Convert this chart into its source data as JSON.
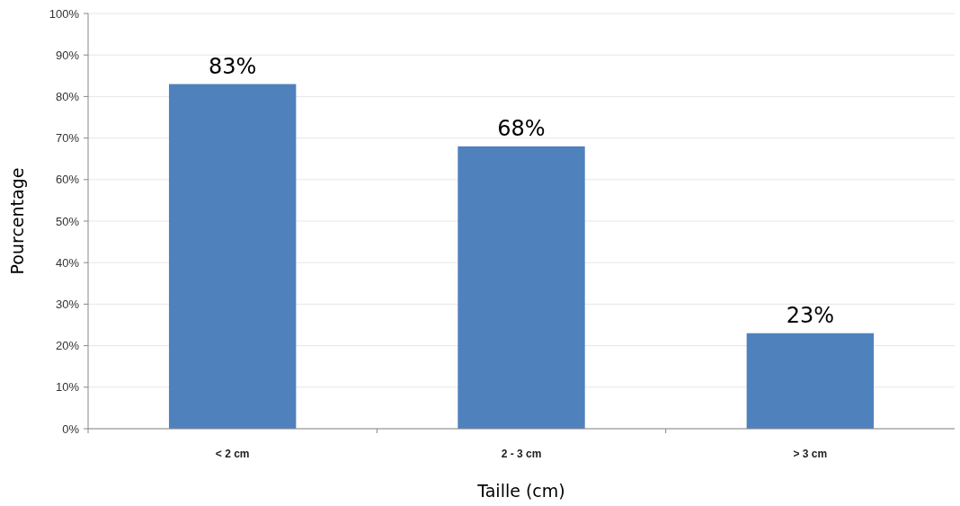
{
  "chart_data": {
    "type": "bar",
    "xlabel": "Taille (cm)",
    "ylabel": "Pourcentage",
    "categories": [
      "< 2 cm",
      "2 - 3 cm",
      "> 3 cm"
    ],
    "values": [
      83,
      68,
      23
    ],
    "color": "#4f81bd",
    "value_labels": [
      "83%",
      "68%",
      "23%"
    ],
    "ylim": [
      0,
      100
    ],
    "yticks": [
      {
        "value": 0,
        "label": "0%"
      },
      {
        "value": 10,
        "label": "10%"
      },
      {
        "value": 20,
        "label": "20%"
      },
      {
        "value": 30,
        "label": "30%"
      },
      {
        "value": 40,
        "label": "40%"
      },
      {
        "value": 50,
        "label": "50%"
      },
      {
        "value": 60,
        "label": "60%"
      },
      {
        "value": 70,
        "label": "70%"
      },
      {
        "value": 80,
        "label": "80%"
      },
      {
        "value": 90,
        "label": "90%"
      },
      {
        "value": 100,
        "label": "100%"
      }
    ],
    "grid": "y"
  }
}
